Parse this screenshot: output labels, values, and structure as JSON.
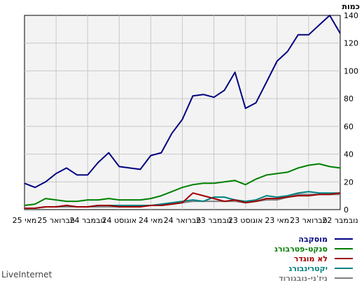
{
  "brand": "LiveInternet",
  "chart_data": {
    "type": "line",
    "ylabel": "כמות",
    "ylim": [
      0,
      140
    ],
    "yticks": [
      0,
      20,
      40,
      60,
      80,
      100,
      120,
      140
    ],
    "grid": true,
    "x_direction": "right-to-left",
    "x_tick_labels": [
      "נובמבר 22",
      "פברואר 23",
      "מאי 23",
      "אוגוסט 23",
      "נובמבר 23",
      "פברואר 24",
      "מאי 24",
      "אוגוסט 24",
      "נובמבר 24",
      "פברואר 25",
      "מאי 25"
    ],
    "x": [
      "Nov 2022",
      "Dec 2022",
      "Jan 2023",
      "Feb 2023",
      "Mar 2023",
      "Apr 2023",
      "May 2023",
      "Jun 2023",
      "Jul 2023",
      "Aug 2023",
      "Sep 2023",
      "Oct 2023",
      "Nov 2023",
      "Dec 2023",
      "Jan 2024",
      "Feb 2024",
      "Mar 2024",
      "Apr 2024",
      "May 2024",
      "Jun 2024",
      "Jul 2024",
      "Aug 2024",
      "Sep 2024",
      "Oct 2024",
      "Nov 2024",
      "Dec 2024",
      "Jan 2025",
      "Feb 2025",
      "Mar 2025",
      "Apr 2025",
      "May 2025"
    ],
    "series": [
      {
        "name": "מוסקבה",
        "color": "#000080",
        "values": [
          127,
          140,
          133,
          126,
          126,
          114,
          107,
          92,
          77,
          73,
          99,
          86,
          81,
          83,
          82,
          65,
          55,
          41,
          39,
          29,
          30,
          31,
          41,
          34,
          25,
          25,
          30,
          26,
          20,
          16,
          19
        ]
      },
      {
        "name": "סנקט-פטרבורג",
        "color": "#008000",
        "values": [
          30,
          31,
          33,
          32,
          30,
          27,
          26,
          25,
          22,
          18,
          21,
          20,
          19,
          19,
          18,
          16,
          13,
          10,
          8,
          7,
          7,
          7,
          8,
          7,
          7,
          6,
          6,
          7,
          8,
          4,
          3
        ]
      },
      {
        "name": "לא מוגדר",
        "color": "#a00000",
        "values": [
          12,
          11,
          11,
          10,
          10,
          9,
          8,
          8,
          6,
          5,
          7,
          6,
          8,
          10,
          12,
          5,
          4,
          3,
          3,
          2,
          2,
          2,
          3,
          3,
          2,
          2,
          3,
          2,
          2,
          1,
          1
        ]
      },
      {
        "name": "יקטרינבורג",
        "color": "#008080",
        "values": [
          12,
          12,
          12,
          13,
          12,
          10,
          9,
          10,
          7,
          6,
          7,
          9,
          9,
          6,
          7,
          6,
          5,
          4,
          3,
          3,
          3,
          3,
          3,
          3,
          2,
          2,
          3,
          2,
          2,
          1,
          1
        ]
      },
      {
        "name": "ניז'ני-נובגורוד",
        "color": "#808080",
        "values": [
          11,
          11,
          11,
          11,
          11,
          9,
          7,
          7,
          6,
          5,
          6,
          6,
          6,
          6,
          6,
          5,
          4,
          3,
          3,
          3,
          2,
          2,
          2,
          2,
          2,
          2,
          2,
          2,
          2,
          1,
          1
        ]
      }
    ]
  }
}
